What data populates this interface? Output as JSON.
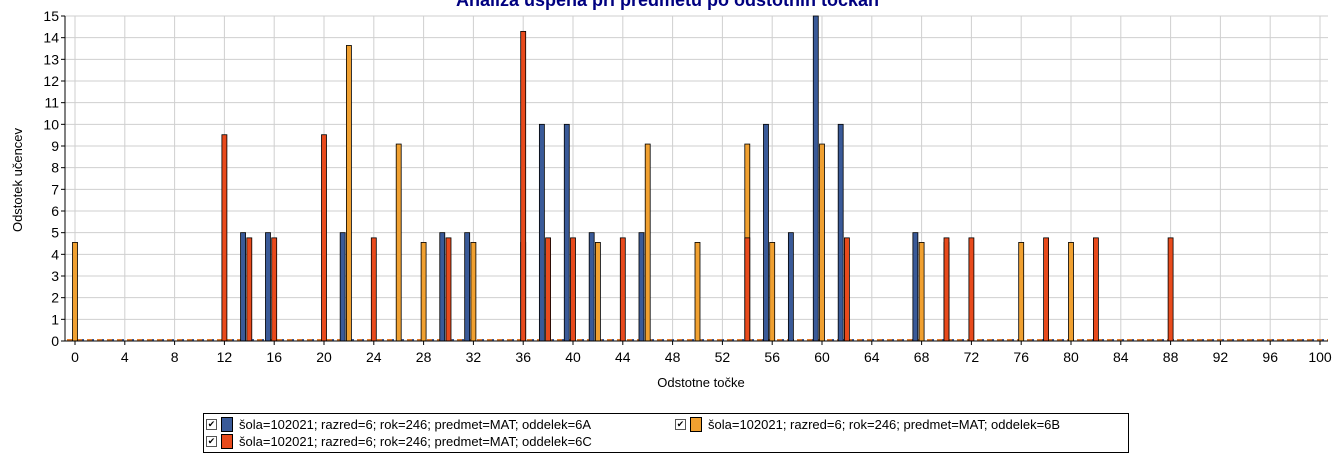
{
  "chart_data": {
    "type": "bar",
    "title": "Analiza uspeha pri predmetu po odstotnih točkah",
    "xlabel": "Odstotne točke",
    "ylabel": "Odstotek učencev",
    "xlim": [
      0,
      100
    ],
    "ylim": [
      0,
      15
    ],
    "x_ticks": [
      "0",
      "4",
      "8",
      "12",
      "16",
      "20",
      "24",
      "28",
      "32",
      "36",
      "40",
      "44",
      "48",
      "52",
      "56",
      "60",
      "64",
      "68",
      "72",
      "76",
      "80",
      "84",
      "88",
      "92",
      "96",
      "100"
    ],
    "y_ticks": [
      "0",
      "1",
      "2",
      "3",
      "4",
      "5",
      "6",
      "7",
      "8",
      "9",
      "10",
      "11",
      "12",
      "13",
      "14",
      "15"
    ],
    "grid": true,
    "legend_position": "bottom",
    "series": [
      {
        "name": "šola=102021; razred=6; rok=246; predmet=MAT; oddelek=6A",
        "color": "#3a5a98",
        "points": [
          [
            13.5,
            5
          ],
          [
            15.5,
            5
          ],
          [
            21.5,
            5
          ],
          [
            29.5,
            5
          ],
          [
            31.5,
            5
          ],
          [
            37.5,
            10
          ],
          [
            39.5,
            10
          ],
          [
            41.5,
            5
          ],
          [
            45.5,
            5
          ],
          [
            55.5,
            10
          ],
          [
            57.5,
            5
          ],
          [
            59.5,
            15
          ],
          [
            61.5,
            10
          ],
          [
            67.5,
            5
          ]
        ]
      },
      {
        "name": "šola=102021; razred=6; rok=246; predmet=MAT; oddelek=6B",
        "color": "#f0a030",
        "points": [
          [
            0,
            4.55
          ],
          [
            22,
            13.64
          ],
          [
            26,
            9.09
          ],
          [
            28,
            4.55
          ],
          [
            32,
            4.55
          ],
          [
            36,
            4.55
          ],
          [
            42,
            4.55
          ],
          [
            46,
            9.09
          ],
          [
            50,
            4.55
          ],
          [
            54,
            9.09
          ],
          [
            56,
            4.55
          ],
          [
            60,
            9.09
          ],
          [
            68,
            4.55
          ],
          [
            70,
            4.55
          ],
          [
            76,
            4.55
          ],
          [
            80,
            4.55
          ]
        ]
      },
      {
        "name": "šola=102021; razred=6; rok=246; predmet=MAT; oddelek=6C",
        "color": "#e84a1c",
        "points": [
          [
            12,
            9.52
          ],
          [
            14,
            4.76
          ],
          [
            16,
            4.76
          ],
          [
            20,
            9.52
          ],
          [
            24,
            4.76
          ],
          [
            30,
            4.76
          ],
          [
            36,
            14.29
          ],
          [
            38,
            4.76
          ],
          [
            40,
            4.76
          ],
          [
            44,
            4.76
          ],
          [
            54,
            4.76
          ],
          [
            62,
            4.76
          ],
          [
            70,
            4.76
          ],
          [
            72,
            4.76
          ],
          [
            78,
            4.76
          ],
          [
            82,
            4.76
          ],
          [
            88,
            4.76
          ]
        ]
      }
    ]
  },
  "legend": {
    "items": [
      {
        "check": "✔",
        "label": "šola=102021; razred=6; rok=246; predmet=MAT; oddelek=6A"
      },
      {
        "check": "✔",
        "label": "šola=102021; razred=6; rok=246; predmet=MAT; oddelek=6B"
      },
      {
        "check": "✔",
        "label": "šola=102021; razred=6; rok=246; predmet=MAT; oddelek=6C"
      }
    ]
  }
}
